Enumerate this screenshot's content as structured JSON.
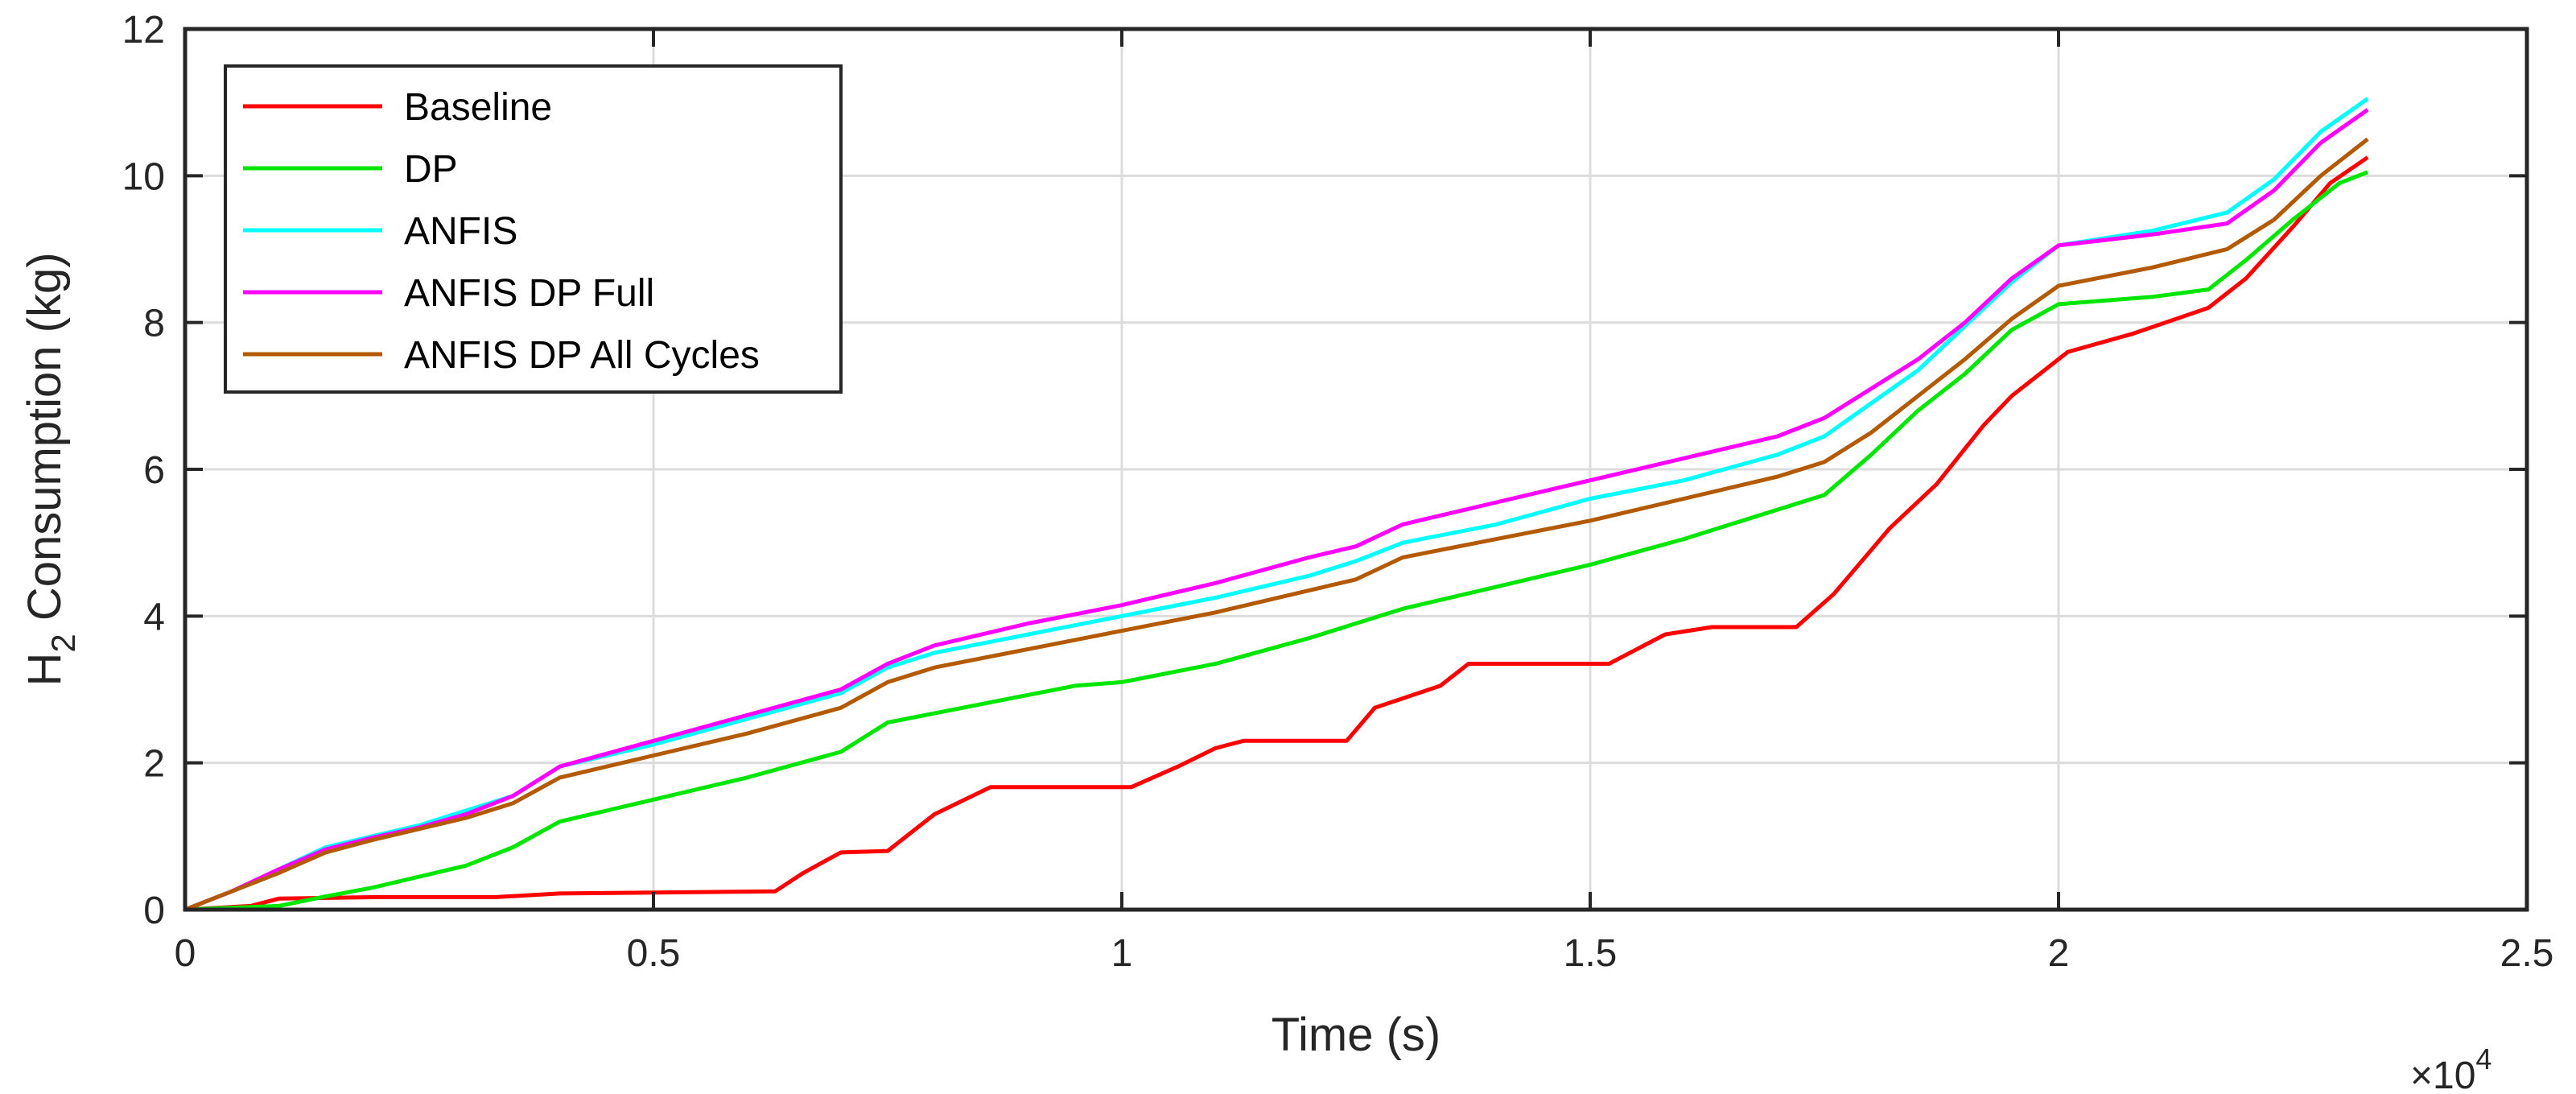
{
  "chart_data": {
    "type": "line",
    "xlabel": "Time (s)",
    "ylabel": {
      "main": "H",
      "sub": "2",
      "rest": " Consumption (kg)"
    },
    "x_multiplier": {
      "times": "×10",
      "exponent": "4"
    },
    "xlim": [
      0,
      2.5
    ],
    "ylim": [
      0,
      12
    ],
    "x_unit_scale": 10000,
    "xticks": [
      0,
      0.5,
      1,
      1.5,
      2,
      2.5
    ],
    "xtick_labels": [
      "0",
      "0.5",
      "1",
      "1.5",
      "2",
      "2.5"
    ],
    "yticks": [
      0,
      2,
      4,
      6,
      8,
      10,
      12
    ],
    "ytick_labels": [
      "0",
      "2",
      "4",
      "6",
      "8",
      "10",
      "12"
    ],
    "grid": true,
    "legend_position": "top-left",
    "series": [
      {
        "name": "Baseline",
        "color": "#ff0000",
        "points": [
          [
            0,
            0
          ],
          [
            0.07,
            0.05
          ],
          [
            0.1,
            0.15
          ],
          [
            0.2,
            0.17
          ],
          [
            0.33,
            0.17
          ],
          [
            0.4,
            0.22
          ],
          [
            0.63,
            0.25
          ],
          [
            0.66,
            0.5
          ],
          [
            0.7,
            0.78
          ],
          [
            0.75,
            0.8
          ],
          [
            0.8,
            1.3
          ],
          [
            0.86,
            1.67
          ],
          [
            1.01,
            1.67
          ],
          [
            1.06,
            1.95
          ],
          [
            1.1,
            2.2
          ],
          [
            1.13,
            2.3
          ],
          [
            1.24,
            2.3
          ],
          [
            1.27,
            2.75
          ],
          [
            1.34,
            3.05
          ],
          [
            1.37,
            3.35
          ],
          [
            1.52,
            3.35
          ],
          [
            1.58,
            3.75
          ],
          [
            1.63,
            3.85
          ],
          [
            1.72,
            3.85
          ],
          [
            1.76,
            4.3
          ],
          [
            1.82,
            5.2
          ],
          [
            1.87,
            5.8
          ],
          [
            1.92,
            6.6
          ],
          [
            1.95,
            7.0
          ],
          [
            2.01,
            7.6
          ],
          [
            2.08,
            7.85
          ],
          [
            2.16,
            8.2
          ],
          [
            2.2,
            8.6
          ],
          [
            2.25,
            9.3
          ],
          [
            2.29,
            9.9
          ],
          [
            2.33,
            10.25
          ]
        ]
      },
      {
        "name": "DP",
        "color": "#00e600",
        "points": [
          [
            0,
            0
          ],
          [
            0.1,
            0.05
          ],
          [
            0.15,
            0.18
          ],
          [
            0.2,
            0.3
          ],
          [
            0.3,
            0.6
          ],
          [
            0.35,
            0.85
          ],
          [
            0.4,
            1.2
          ],
          [
            0.5,
            1.5
          ],
          [
            0.6,
            1.8
          ],
          [
            0.7,
            2.15
          ],
          [
            0.75,
            2.55
          ],
          [
            0.85,
            2.8
          ],
          [
            0.95,
            3.05
          ],
          [
            1.0,
            3.1
          ],
          [
            1.1,
            3.35
          ],
          [
            1.2,
            3.7
          ],
          [
            1.3,
            4.1
          ],
          [
            1.4,
            4.4
          ],
          [
            1.5,
            4.7
          ],
          [
            1.6,
            5.05
          ],
          [
            1.7,
            5.45
          ],
          [
            1.75,
            5.65
          ],
          [
            1.8,
            6.2
          ],
          [
            1.85,
            6.8
          ],
          [
            1.9,
            7.3
          ],
          [
            1.95,
            7.9
          ],
          [
            2.0,
            8.25
          ],
          [
            2.1,
            8.35
          ],
          [
            2.16,
            8.45
          ],
          [
            2.2,
            8.85
          ],
          [
            2.25,
            9.4
          ],
          [
            2.3,
            9.9
          ],
          [
            2.33,
            10.05
          ]
        ]
      },
      {
        "name": "ANFIS",
        "color": "#00ffff",
        "points": [
          [
            0,
            0
          ],
          [
            0.05,
            0.25
          ],
          [
            0.1,
            0.55
          ],
          [
            0.15,
            0.85
          ],
          [
            0.2,
            1.0
          ],
          [
            0.25,
            1.15
          ],
          [
            0.3,
            1.35
          ],
          [
            0.35,
            1.55
          ],
          [
            0.4,
            1.95
          ],
          [
            0.5,
            2.25
          ],
          [
            0.6,
            2.6
          ],
          [
            0.7,
            2.95
          ],
          [
            0.75,
            3.3
          ],
          [
            0.8,
            3.5
          ],
          [
            0.9,
            3.75
          ],
          [
            1.0,
            4.0
          ],
          [
            1.1,
            4.25
          ],
          [
            1.2,
            4.55
          ],
          [
            1.25,
            4.75
          ],
          [
            1.3,
            5.0
          ],
          [
            1.4,
            5.25
          ],
          [
            1.5,
            5.6
          ],
          [
            1.6,
            5.85
          ],
          [
            1.7,
            6.2
          ],
          [
            1.75,
            6.45
          ],
          [
            1.8,
            6.9
          ],
          [
            1.85,
            7.35
          ],
          [
            1.9,
            7.95
          ],
          [
            1.95,
            8.55
          ],
          [
            2.0,
            9.05
          ],
          [
            2.1,
            9.25
          ],
          [
            2.18,
            9.5
          ],
          [
            2.23,
            9.95
          ],
          [
            2.28,
            10.6
          ],
          [
            2.33,
            11.05
          ]
        ]
      },
      {
        "name": "ANFIS DP Full",
        "color": "#ff00ff",
        "points": [
          [
            0,
            0
          ],
          [
            0.05,
            0.25
          ],
          [
            0.1,
            0.55
          ],
          [
            0.15,
            0.82
          ],
          [
            0.2,
            0.98
          ],
          [
            0.25,
            1.12
          ],
          [
            0.3,
            1.3
          ],
          [
            0.35,
            1.55
          ],
          [
            0.4,
            1.95
          ],
          [
            0.5,
            2.3
          ],
          [
            0.6,
            2.65
          ],
          [
            0.7,
            3.0
          ],
          [
            0.75,
            3.35
          ],
          [
            0.8,
            3.6
          ],
          [
            0.9,
            3.9
          ],
          [
            1.0,
            4.15
          ],
          [
            1.1,
            4.45
          ],
          [
            1.2,
            4.8
          ],
          [
            1.25,
            4.95
          ],
          [
            1.3,
            5.25
          ],
          [
            1.4,
            5.55
          ],
          [
            1.5,
            5.85
          ],
          [
            1.6,
            6.15
          ],
          [
            1.7,
            6.45
          ],
          [
            1.75,
            6.7
          ],
          [
            1.8,
            7.1
          ],
          [
            1.85,
            7.5
          ],
          [
            1.9,
            8.0
          ],
          [
            1.95,
            8.6
          ],
          [
            2.0,
            9.05
          ],
          [
            2.1,
            9.2
          ],
          [
            2.18,
            9.35
          ],
          [
            2.23,
            9.8
          ],
          [
            2.28,
            10.45
          ],
          [
            2.33,
            10.9
          ]
        ]
      },
      {
        "name": "ANFIS DP All Cycles",
        "color": "#b35900",
        "points": [
          [
            0,
            0
          ],
          [
            0.05,
            0.25
          ],
          [
            0.1,
            0.5
          ],
          [
            0.15,
            0.78
          ],
          [
            0.2,
            0.95
          ],
          [
            0.25,
            1.1
          ],
          [
            0.3,
            1.25
          ],
          [
            0.35,
            1.45
          ],
          [
            0.4,
            1.8
          ],
          [
            0.5,
            2.1
          ],
          [
            0.6,
            2.4
          ],
          [
            0.7,
            2.75
          ],
          [
            0.75,
            3.1
          ],
          [
            0.8,
            3.3
          ],
          [
            0.9,
            3.55
          ],
          [
            1.0,
            3.8
          ],
          [
            1.1,
            4.05
          ],
          [
            1.2,
            4.35
          ],
          [
            1.25,
            4.5
          ],
          [
            1.3,
            4.8
          ],
          [
            1.4,
            5.05
          ],
          [
            1.5,
            5.3
          ],
          [
            1.6,
            5.6
          ],
          [
            1.7,
            5.9
          ],
          [
            1.75,
            6.1
          ],
          [
            1.8,
            6.5
          ],
          [
            1.85,
            7.0
          ],
          [
            1.9,
            7.5
          ],
          [
            1.95,
            8.05
          ],
          [
            2.0,
            8.5
          ],
          [
            2.1,
            8.75
          ],
          [
            2.18,
            9.0
          ],
          [
            2.23,
            9.4
          ],
          [
            2.28,
            10.0
          ],
          [
            2.33,
            10.5
          ]
        ]
      }
    ]
  }
}
